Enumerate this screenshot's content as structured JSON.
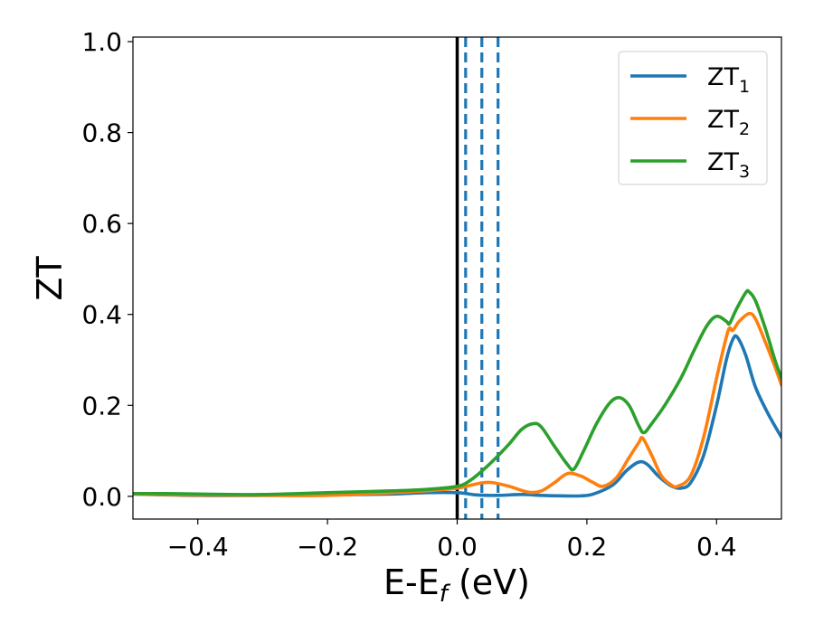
{
  "chart_data": {
    "type": "line",
    "xlabel": "E-E",
    "xlabel_sub": "f",
    "xlabel_unit": " (eV)",
    "ylabel": "ZT",
    "xlim": [
      -0.5,
      0.5
    ],
    "ylim": [
      -0.05,
      1.01
    ],
    "x_ticks": [
      -0.4,
      -0.2,
      0.0,
      0.2,
      0.4
    ],
    "x_tick_labels": [
      "−0.4",
      "−0.2",
      "0.0",
      "0.2",
      "0.4"
    ],
    "y_ticks": [
      0.0,
      0.2,
      0.4,
      0.6,
      0.8,
      1.0
    ],
    "y_tick_labels": [
      "0.0",
      "0.2",
      "0.4",
      "0.6",
      "0.8",
      "1.0"
    ],
    "grid": false,
    "legend_position": "top-right",
    "vertical_lines": [
      {
        "x": 0.0,
        "style": "solid",
        "color": "#000000"
      },
      {
        "x": 0.013,
        "style": "dashed",
        "color": "#1f77b4"
      },
      {
        "x": 0.038,
        "style": "dashed",
        "color": "#1f77b4"
      },
      {
        "x": 0.063,
        "style": "dashed",
        "color": "#1f77b4"
      }
    ],
    "series": [
      {
        "name": "ZT",
        "subscript": "1",
        "color": "#1f77b4",
        "points": [
          [
            -0.5,
            0.005
          ],
          [
            -0.4,
            0.002
          ],
          [
            -0.3,
            0.002
          ],
          [
            -0.2,
            0.003
          ],
          [
            -0.1,
            0.005
          ],
          [
            -0.05,
            0.008
          ],
          [
            0.0,
            0.008
          ],
          [
            0.03,
            0.003
          ],
          [
            0.06,
            0.002
          ],
          [
            0.1,
            0.004
          ],
          [
            0.13,
            0.002
          ],
          [
            0.16,
            0.001
          ],
          [
            0.19,
            0.001
          ],
          [
            0.21,
            0.005
          ],
          [
            0.24,
            0.025
          ],
          [
            0.26,
            0.055
          ],
          [
            0.275,
            0.072
          ],
          [
            0.285,
            0.076
          ],
          [
            0.295,
            0.068
          ],
          [
            0.31,
            0.045
          ],
          [
            0.33,
            0.023
          ],
          [
            0.345,
            0.018
          ],
          [
            0.36,
            0.03
          ],
          [
            0.38,
            0.09
          ],
          [
            0.4,
            0.2
          ],
          [
            0.415,
            0.3
          ],
          [
            0.425,
            0.345
          ],
          [
            0.432,
            0.35
          ],
          [
            0.445,
            0.31
          ],
          [
            0.46,
            0.24
          ],
          [
            0.48,
            0.18
          ],
          [
            0.5,
            0.13
          ]
        ]
      },
      {
        "name": "ZT",
        "subscript": "2",
        "color": "#ff7f0e",
        "points": [
          [
            -0.5,
            0.005
          ],
          [
            -0.4,
            0.003
          ],
          [
            -0.3,
            0.002
          ],
          [
            -0.2,
            0.002
          ],
          [
            -0.1,
            0.008
          ],
          [
            -0.05,
            0.012
          ],
          [
            0.0,
            0.018
          ],
          [
            0.02,
            0.024
          ],
          [
            0.04,
            0.03
          ],
          [
            0.055,
            0.03
          ],
          [
            0.08,
            0.022
          ],
          [
            0.11,
            0.009
          ],
          [
            0.13,
            0.012
          ],
          [
            0.15,
            0.03
          ],
          [
            0.17,
            0.05
          ],
          [
            0.19,
            0.045
          ],
          [
            0.21,
            0.03
          ],
          [
            0.225,
            0.022
          ],
          [
            0.245,
            0.04
          ],
          [
            0.265,
            0.085
          ],
          [
            0.28,
            0.118
          ],
          [
            0.286,
            0.128
          ],
          [
            0.3,
            0.09
          ],
          [
            0.315,
            0.045
          ],
          [
            0.33,
            0.025
          ],
          [
            0.34,
            0.022
          ],
          [
            0.36,
            0.045
          ],
          [
            0.38,
            0.13
          ],
          [
            0.4,
            0.26
          ],
          [
            0.415,
            0.35
          ],
          [
            0.42,
            0.37
          ],
          [
            0.425,
            0.365
          ],
          [
            0.435,
            0.385
          ],
          [
            0.45,
            0.402
          ],
          [
            0.46,
            0.39
          ],
          [
            0.475,
            0.34
          ],
          [
            0.49,
            0.285
          ],
          [
            0.5,
            0.245
          ]
        ]
      },
      {
        "name": "ZT",
        "subscript": "3",
        "color": "#2ca02c",
        "points": [
          [
            -0.5,
            0.006
          ],
          [
            -0.45,
            0.006
          ],
          [
            -0.4,
            0.005
          ],
          [
            -0.3,
            0.004
          ],
          [
            -0.2,
            0.008
          ],
          [
            -0.1,
            0.012
          ],
          [
            -0.05,
            0.015
          ],
          [
            0.0,
            0.022
          ],
          [
            0.02,
            0.035
          ],
          [
            0.04,
            0.058
          ],
          [
            0.06,
            0.085
          ],
          [
            0.08,
            0.115
          ],
          [
            0.1,
            0.148
          ],
          [
            0.118,
            0.16
          ],
          [
            0.13,
            0.152
          ],
          [
            0.15,
            0.11
          ],
          [
            0.17,
            0.07
          ],
          [
            0.18,
            0.06
          ],
          [
            0.195,
            0.1
          ],
          [
            0.215,
            0.16
          ],
          [
            0.235,
            0.205
          ],
          [
            0.25,
            0.217
          ],
          [
            0.265,
            0.2
          ],
          [
            0.28,
            0.155
          ],
          [
            0.288,
            0.14
          ],
          [
            0.3,
            0.16
          ],
          [
            0.32,
            0.2
          ],
          [
            0.345,
            0.26
          ],
          [
            0.365,
            0.32
          ],
          [
            0.385,
            0.375
          ],
          [
            0.4,
            0.396
          ],
          [
            0.415,
            0.385
          ],
          [
            0.42,
            0.38
          ],
          [
            0.43,
            0.41
          ],
          [
            0.445,
            0.448
          ],
          [
            0.45,
            0.45
          ],
          [
            0.46,
            0.43
          ],
          [
            0.475,
            0.37
          ],
          [
            0.49,
            0.3
          ],
          [
            0.5,
            0.26
          ]
        ]
      }
    ]
  }
}
